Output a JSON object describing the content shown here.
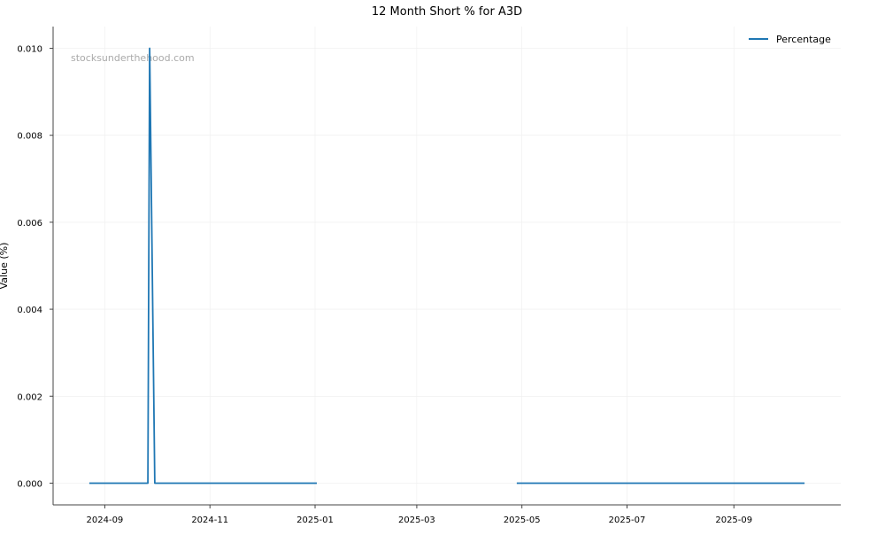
{
  "chart_data": {
    "type": "line",
    "title": "12 Month Short % for A3D",
    "xlabel": "",
    "ylabel": "Value (%)",
    "watermark": "stocksunderthehood.com",
    "xlim": [
      "2024-08-02",
      "2025-11-02"
    ],
    "ylim": [
      -0.0005,
      0.0105
    ],
    "x_ticks": [
      "2024-09",
      "2024-11",
      "2025-01",
      "2025-03",
      "2025-05",
      "2025-07",
      "2025-09"
    ],
    "y_ticks": [
      "0.000",
      "0.002",
      "0.004",
      "0.006",
      "0.008",
      "0.010"
    ],
    "grid": true,
    "legend_position": "top-right",
    "series": [
      {
        "name": "Percentage",
        "color": "#1f77b4",
        "segments": [
          [
            {
              "x": "2024-08-23",
              "y": 0.0
            },
            {
              "x": "2024-09-26",
              "y": 0.0
            },
            {
              "x": "2024-09-27",
              "y": 0.01
            },
            {
              "x": "2024-09-30",
              "y": 0.0
            },
            {
              "x": "2025-01-02",
              "y": 0.0
            }
          ],
          [
            {
              "x": "2025-04-28",
              "y": 0.0
            },
            {
              "x": "2025-10-12",
              "y": 0.0
            }
          ]
        ]
      }
    ]
  }
}
